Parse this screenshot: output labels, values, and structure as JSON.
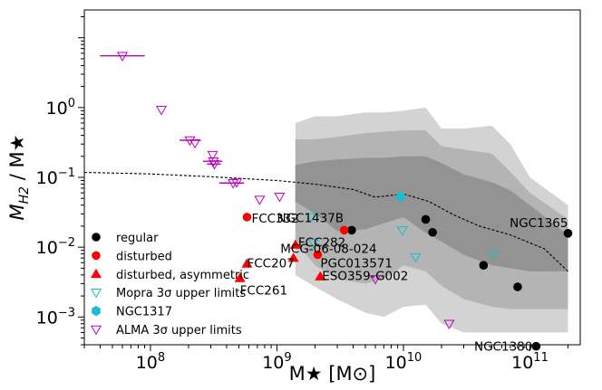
{
  "chart_data": {
    "type": "scatter",
    "xlabel": "M★ [M⊙]",
    "ylabel": "M_H2 / M★",
    "xscale": "log",
    "yscale": "log",
    "xlim": [
      30000000.0,
      250000000000.0
    ],
    "ylim": [
      0.0004,
      25
    ],
    "grid": false,
    "legend_position": "lower-left",
    "x_ticks": [
      {
        "value": 100000000.0,
        "base": "10",
        "exp": "8"
      },
      {
        "value": 1000000000.0,
        "base": "10",
        "exp": "9"
      },
      {
        "value": 10000000000.0,
        "base": "10",
        "exp": "10"
      },
      {
        "value": 100000000000.0,
        "base": "10",
        "exp": "11"
      }
    ],
    "y_ticks": [
      {
        "value": 0.001,
        "base": "10",
        "exp": "−3"
      },
      {
        "value": 0.01,
        "base": "10",
        "exp": "−2"
      },
      {
        "value": 0.1,
        "base": "10",
        "exp": "−1"
      },
      {
        "value": 1,
        "base": "10",
        "exp": "0"
      }
    ],
    "series": [
      {
        "name": "regular",
        "marker": "circle",
        "color": "#000000",
        "points": [
          [
            3900000000.0,
            0.0175
          ],
          [
            15000000000.0,
            0.025
          ],
          [
            17000000000.0,
            0.0163
          ],
          [
            43000000000.0,
            0.0055
          ],
          [
            80000000000.0,
            0.0027
          ],
          [
            200000000000.0,
            0.0158
          ],
          [
            112000000000.0,
            0.00038
          ]
        ]
      },
      {
        "name": "disturbed",
        "marker": "circle",
        "color": "#ff0000",
        "points": [
          [
            580000000.0,
            0.027
          ],
          [
            3400000000.0,
            0.0175
          ],
          [
            2100000000.0,
            0.0078
          ]
        ]
      },
      {
        "name": "disturbed, asymmetric",
        "marker": "triangle-up",
        "color": "#ff0000",
        "points": [
          [
            1400000000.0,
            0.0108
          ],
          [
            580000000.0,
            0.0058
          ],
          [
            1350000000.0,
            0.007
          ],
          [
            510000000.0,
            0.0036
          ],
          [
            2200000000.0,
            0.0038
          ]
        ]
      },
      {
        "name": "Mopra 3σ upper limits",
        "marker": "triangle-down-open",
        "color": "#17becf",
        "points": [
          [
            1850000000.0,
            0.027
          ],
          [
            1950000000.0,
            0.0115
          ],
          [
            9800000000.0,
            0.0175
          ],
          [
            12500000000.0,
            0.0072
          ],
          [
            52000000000.0,
            0.0078
          ]
        ]
      },
      {
        "name": "NGC1317",
        "marker": "hexagon",
        "color": "#17becf",
        "points": [
          [
            9500000000.0,
            0.053
          ]
        ]
      },
      {
        "name": "ALMA 3σ upper limits",
        "marker": "triangle-down-open",
        "color": "#bf00bf",
        "points": [
          [
            60000000.0,
            5.5,
            40000000.0,
            90000000.0
          ],
          [
            122000000.0,
            0.93,
            null,
            null
          ],
          [
            205000000.0,
            0.34,
            170000000.0,
            250000000.0
          ],
          [
            225000000.0,
            0.31,
            null,
            null
          ],
          [
            310000000.0,
            0.21,
            null,
            null
          ],
          [
            315000000.0,
            0.17,
            260000000.0,
            370000000.0
          ],
          [
            320000000.0,
            0.155,
            280000000.0,
            360000000.0
          ],
          [
            450000000.0,
            0.083,
            350000000.0,
            550000000.0
          ],
          [
            480000000.0,
            0.085,
            null,
            null
          ],
          [
            730000000.0,
            0.048,
            null,
            null
          ],
          [
            1050000000.0,
            0.053,
            null,
            null
          ],
          [
            6000000000.0,
            0.0035,
            null,
            null
          ],
          [
            23000000000.0,
            0.0008,
            null,
            null
          ]
        ]
      }
    ],
    "annotations": [
      {
        "text": "FCC332",
        "x": 580000000.0,
        "y": 0.027,
        "anchor": "start",
        "dx": 5,
        "dy": 1
      },
      {
        "text": "NGC1437B",
        "x": 3600000000.0,
        "y": 0.0175,
        "anchor": "end",
        "dx": -4,
        "dy": -14
      },
      {
        "text": "NGC1365",
        "x": 200000000000.0,
        "y": 0.0158,
        "anchor": "end",
        "dx": 0,
        "dy": -12
      },
      {
        "text": "FCC282",
        "x": 1400000000.0,
        "y": 0.0108,
        "anchor": "start",
        "dx": 3,
        "dy": -3
      },
      {
        "text": "MCG-06-08-024",
        "x": 2100000000.0,
        "y": 0.0078,
        "anchor": "middle",
        "dx": 12,
        "dy": -7
      },
      {
        "text": "FCC207",
        "x": 580000000.0,
        "y": 0.0058,
        "anchor": "start",
        "dx": 0,
        "dy": -1
      },
      {
        "text": "PGC013571",
        "x": 2100000000.0,
        "y": 0.0078,
        "anchor": "start",
        "dx": 3,
        "dy": 9
      },
      {
        "text": "ESO359-G002",
        "x": 2200000000.0,
        "y": 0.0038,
        "anchor": "start",
        "dx": 2,
        "dy": -1
      },
      {
        "text": "FCC261",
        "x": 510000000.0,
        "y": 0.0036,
        "anchor": "start",
        "dx": 0,
        "dy": 13
      },
      {
        "text": "NGC1380",
        "x": 112000000000.0,
        "y": 0.00038,
        "anchor": "end",
        "dx": -4,
        "dy": 0
      }
    ],
    "dashed_line": {
      "color": "#000000",
      "points": [
        [
          30000000.0,
          0.118
        ],
        [
          100000000.0,
          0.112
        ],
        [
          300000000.0,
          0.102
        ],
        [
          1000000000.0,
          0.09
        ],
        [
          2000000000.0,
          0.08
        ],
        [
          4000000000.0,
          0.067
        ],
        [
          6000000000.0,
          0.052
        ],
        [
          10000000000.0,
          0.058
        ],
        [
          16000000000.0,
          0.045
        ],
        [
          25000000000.0,
          0.029
        ],
        [
          40000000000.0,
          0.02
        ],
        [
          70000000000.0,
          0.015
        ],
        [
          130000000000.0,
          0.0095
        ],
        [
          200000000000.0,
          0.0045
        ]
      ]
    },
    "bands": [
      {
        "level": "outer",
        "color": "#d3d3d3",
        "x": [
          1400000000.0,
          2000000000.0,
          3000000000.0,
          5000000000.0,
          7000000000.0,
          10000000000.0,
          15000000000.0,
          20000000000.0,
          30000000000.0,
          50000000000.0,
          70000000000.0,
          100000000000.0,
          200000000000.0
        ],
        "upper": [
          0.6,
          0.75,
          0.75,
          0.85,
          0.85,
          0.9,
          1.0,
          0.5,
          0.5,
          0.55,
          0.3,
          0.1,
          0.04
        ],
        "lower": [
          0.004,
          0.0027,
          0.0018,
          0.00115,
          0.001,
          0.0014,
          0.0015,
          0.0008,
          0.0006,
          0.0006,
          0.0006,
          0.0006,
          0.0006
        ]
      },
      {
        "level": "middle",
        "color": "#b4b4b4",
        "x": [
          1400000000.0,
          2000000000.0,
          3000000000.0,
          5000000000.0,
          7000000000.0,
          10000000000.0,
          15000000000.0,
          20000000000.0,
          30000000000.0,
          50000000000.0,
          70000000000.0,
          100000000000.0,
          200000000000.0
        ],
        "upper": [
          0.35,
          0.35,
          0.38,
          0.43,
          0.45,
          0.47,
          0.47,
          0.28,
          0.25,
          0.22,
          0.12,
          0.06,
          0.025
        ],
        "lower": [
          0.012,
          0.0055,
          0.0035,
          0.003,
          0.0035,
          0.0055,
          0.0045,
          0.0028,
          0.0018,
          0.0014,
          0.0013,
          0.0013,
          0.0013
        ]
      },
      {
        "level": "inner",
        "color": "#939393",
        "x": [
          1400000000.0,
          2000000000.0,
          3000000000.0,
          5000000000.0,
          7000000000.0,
          10000000000.0,
          15000000000.0,
          20000000000.0,
          30000000000.0,
          50000000000.0,
          70000000000.0,
          100000000000.0,
          200000000000.0
        ],
        "upper": [
          0.15,
          0.17,
          0.18,
          0.19,
          0.19,
          0.2,
          0.2,
          0.16,
          0.11,
          0.085,
          0.065,
          0.04,
          0.015
        ],
        "lower": [
          0.045,
          0.03,
          0.017,
          0.018,
          0.022,
          0.027,
          0.016,
          0.012,
          0.0078,
          0.0055,
          0.005,
          0.0045,
          0.0045
        ]
      }
    ]
  }
}
